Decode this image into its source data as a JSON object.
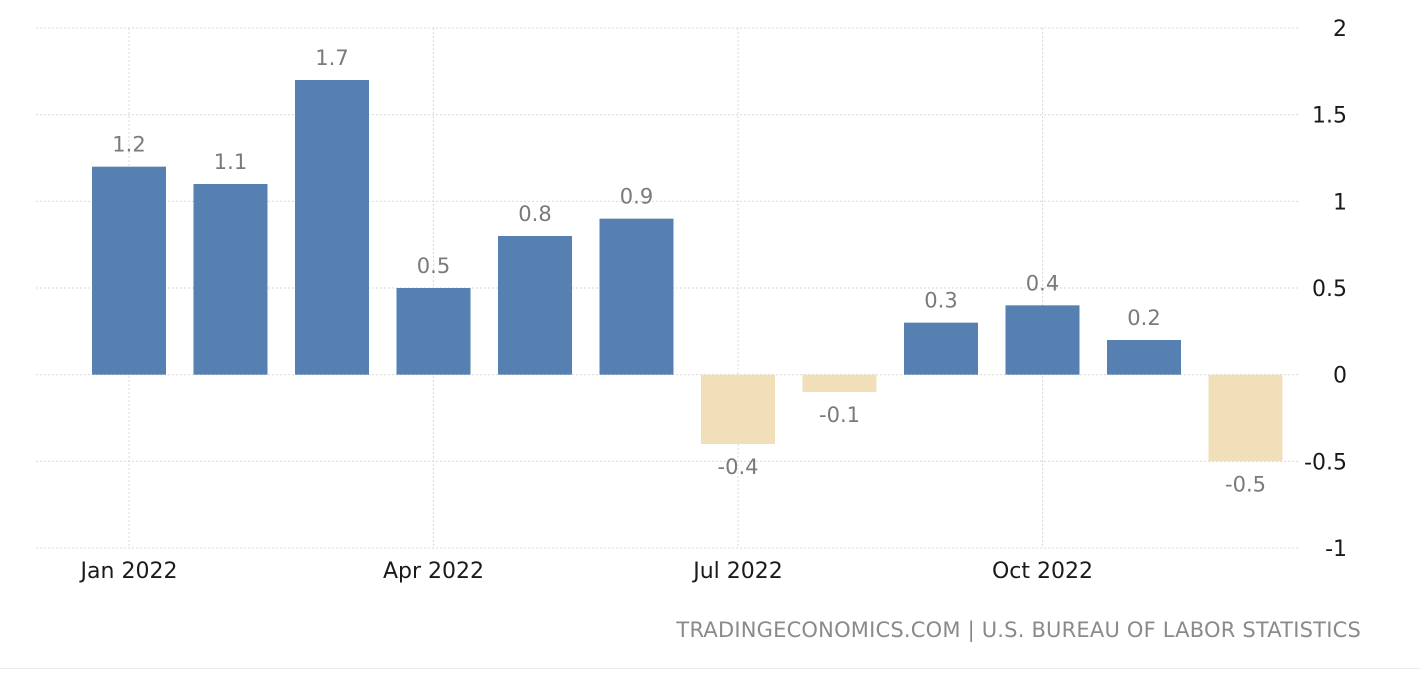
{
  "chart_data": {
    "type": "bar",
    "title": "",
    "xlabel": "",
    "ylabel": "",
    "categories": [
      "Jan 2022",
      "Feb 2022",
      "Mar 2022",
      "Apr 2022",
      "May 2022",
      "Jun 2022",
      "Jul 2022",
      "Aug 2022",
      "Sep 2022",
      "Oct 2022",
      "Nov 2022",
      "Dec 2022"
    ],
    "values": [
      1.2,
      1.1,
      1.7,
      0.5,
      0.8,
      0.9,
      -0.4,
      -0.1,
      0.3,
      0.4,
      0.2,
      -0.5
    ],
    "value_labels": [
      "1.2",
      "1.1",
      "1.7",
      "0.5",
      "0.8",
      "0.9",
      "-0.4",
      "-0.1",
      "0.3",
      "0.4",
      "0.2",
      "-0.5"
    ],
    "ylim": [
      -1,
      2
    ],
    "y_ticks": [
      {
        "value": 2,
        "label": "2"
      },
      {
        "value": 1.5,
        "label": "1.5"
      },
      {
        "value": 1,
        "label": "1"
      },
      {
        "value": 0.5,
        "label": "0.5"
      },
      {
        "value": 0,
        "label": "0"
      },
      {
        "value": -0.5,
        "label": "-0.5"
      },
      {
        "value": -1,
        "label": "-1"
      }
    ],
    "x_ticks": [
      {
        "category_index": 0,
        "label": "Jan 2022"
      },
      {
        "category_index": 3,
        "label": "Apr 2022"
      },
      {
        "category_index": 6,
        "label": "Jul 2022"
      },
      {
        "category_index": 9,
        "label": "Oct 2022"
      }
    ],
    "y_axis_position": "right",
    "grid": true,
    "legend": "none",
    "colors": {
      "positive": "#5580b1",
      "negative": "#f0dfb9",
      "grid": "#d9d9d9",
      "tick_text": "#1a1a1a",
      "label_text": "#7a7a7a"
    }
  },
  "source": {
    "text": "TRADINGECONOMICS.COM | U.S. BUREAU OF LABOR STATISTICS"
  }
}
